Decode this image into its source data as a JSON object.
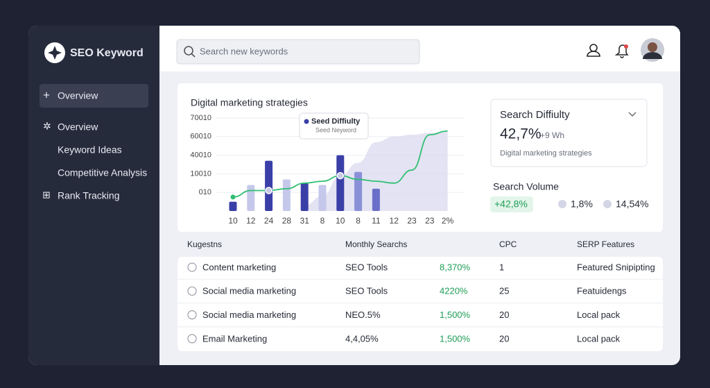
{
  "sidebar": {
    "brand": "SEO Keyword",
    "nav": [
      "Overview",
      "Overview",
      "Keyword Ideas",
      "Competitive Analysis",
      "Rank Tracking"
    ]
  },
  "header": {
    "search_placeholder": "Search new keywords"
  },
  "chart_data": {
    "type": "bar",
    "title": "Digital marketing strategies",
    "categories": [
      "10",
      "12",
      "24",
      "28",
      "31",
      "8",
      "10",
      "8",
      "11",
      "12",
      "23",
      "23",
      "2%"
    ],
    "series": [
      {
        "type": "bar",
        "colors": [
          "#3a3fa8",
          "#c5c8ea",
          "#3a3fa8",
          "#c5c8ea",
          "#3a3fa8",
          "#c5c8ea",
          "#3a3fa8",
          "#8a90d8",
          "#6a70c8"
        ],
        "values": [
          0.5,
          1.4,
          2.7,
          1.7,
          1.5,
          1.4,
          3.0,
          2.1,
          1.2,
          null,
          null,
          null,
          null
        ]
      },
      {
        "type": "line",
        "color": "#2fbf71",
        "values": [
          0.75,
          1.1,
          1.1,
          1.2,
          1.5,
          1.6,
          1.9,
          1.7,
          1.6,
          1.5,
          2.2,
          4.1,
          4.3
        ]
      },
      {
        "type": "area",
        "color": "#dcdcf0",
        "values": [
          null,
          null,
          null,
          null,
          0.3,
          0.8,
          1.9,
          2.6,
          3.7,
          4.0,
          4.1,
          4.2,
          4.3
        ]
      }
    ],
    "highlight_points": [
      2,
      6
    ],
    "ylim": [
      0,
      5
    ],
    "yticks": [
      {
        "value": 1,
        "label": "010"
      },
      {
        "value": 2,
        "label": "10010"
      },
      {
        "value": 3,
        "label": "40010"
      },
      {
        "value": 4,
        "label": "60010"
      },
      {
        "value": 5,
        "label": "70010"
      }
    ],
    "grid": true,
    "tooltip": {
      "title": "Seed Diffiulty",
      "subtitle": "Seed Neyword"
    }
  },
  "search_difficulty": {
    "title": "Search Diffiulty",
    "value": "42,7%",
    "delta": "+9 Wh",
    "note": "Digital marketing strategies"
  },
  "search_volume": {
    "title": "Search Volume",
    "items": [
      "+42,8%",
      "1,8%",
      "14,54%"
    ]
  },
  "table": {
    "columns": [
      "Kugestns",
      "Monthly Searchs",
      "",
      "CPC",
      "SERP Features"
    ],
    "rows": [
      [
        "Content marketing",
        "SEO Tools",
        "8,370%",
        "1",
        "Featured Snipipting"
      ],
      [
        "Social media marketing",
        "SEO Tools",
        "4220%",
        "25",
        "Featuidengs"
      ],
      [
        "Social media marketing",
        "NEO.5%",
        "1,500%",
        "20",
        "Local pack"
      ],
      [
        "Email Marketing",
        "4,4,05%",
        "1,500%",
        "20",
        "Local pack"
      ]
    ]
  }
}
